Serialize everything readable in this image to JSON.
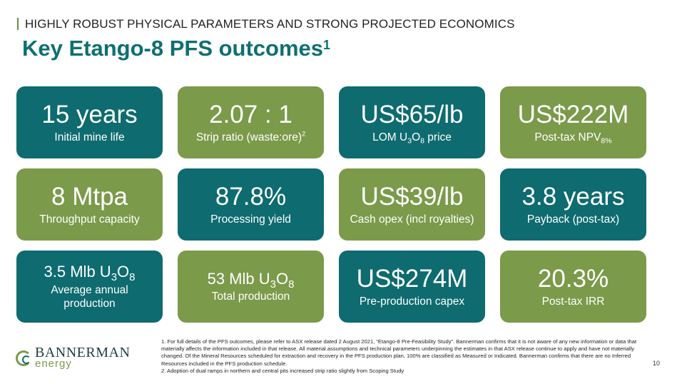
{
  "kicker": "HIGHLY ROBUST PHYSICAL PARAMETERS AND STRONG PROJECTED ECONOMICS",
  "title": "Key Etango-8 PFS outcomes",
  "title_sup": "1",
  "cards": [
    {
      "value": "15 years",
      "caption": "Initial mine life",
      "color": "teal"
    },
    {
      "value": "2.07 : 1",
      "caption": "Strip ratio (waste:ore)",
      "caption_sup": "2",
      "color": "green"
    },
    {
      "value": "US$65/lb",
      "caption_pre": "LOM U",
      "sub1": "3",
      "mid": "O",
      "sub2": "8",
      "caption_post": " price",
      "color": "teal"
    },
    {
      "value": "US$222M",
      "caption": "Post-tax NPV",
      "caption_sub": "8%",
      "color": "green"
    },
    {
      "value": "8 Mtpa",
      "caption": "Throughput capacity",
      "color": "green"
    },
    {
      "value": "87.8%",
      "caption": "Processing yield",
      "color": "teal"
    },
    {
      "value": "US$39/lb",
      "caption": "Cash opex (incl royalties)",
      "color": "green"
    },
    {
      "value": "3.8 years",
      "caption": "Payback (post-tax)",
      "color": "teal"
    },
    {
      "value_pre": "3.5 Mlb U",
      "sub1": "3",
      "mid": "O",
      "sub2": "8",
      "caption_l1": "Average annual",
      "caption_l2": "production",
      "color": "teal"
    },
    {
      "value_pre": "53 Mlb U",
      "sub1": "3",
      "mid": "O",
      "sub2": "8",
      "caption": "Total production",
      "color": "green"
    },
    {
      "value": "US$274M",
      "caption": "Pre-production capex",
      "color": "teal"
    },
    {
      "value": "20.3%",
      "caption": "Post-tax IRR",
      "color": "green"
    }
  ],
  "logo": {
    "name": "BANNERMAN",
    "sub": "energy"
  },
  "footnotes": [
    "1. For full details of the PFS outcomes, please refer to ASX release dated 2 August 2021, “Etango-8 Pre-Feasibility Study”. Bannerman confirms that it is not aware of any new information or data that materially affects the information included in that release.  All material assumptions and technical parameters underpinning the estimates in that ASX release continue to apply and have not materially changed. Of the Mineral Resources scheduled for extraction and recovery in the PFS production plan, 100% are classified as Measured or Indicated.  Bannerman confirms that there are no Inferred Resources included in the PFS production schedule.",
    "2. Adoption of dual ramps in northern and central pits increased strip ratio slightly from Scoping Study"
  ],
  "page_number": "10"
}
